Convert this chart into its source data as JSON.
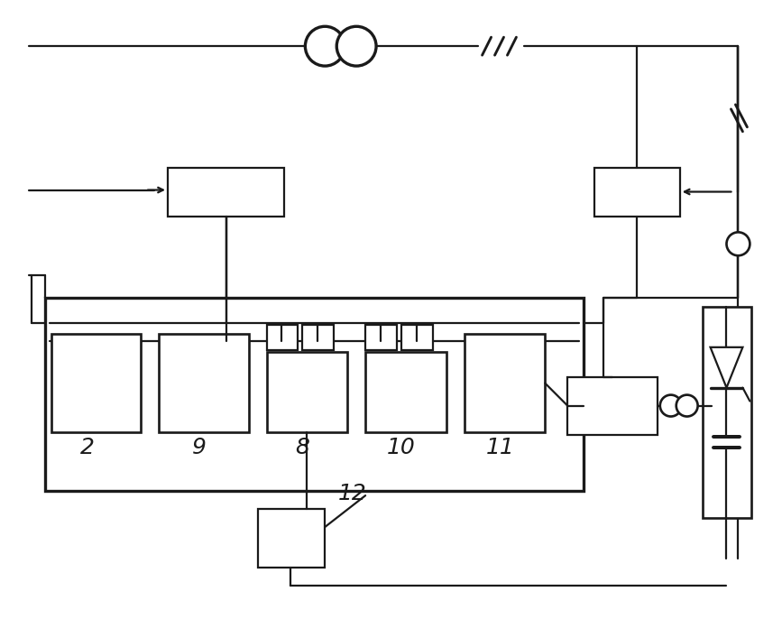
{
  "bg_color": "#ffffff",
  "line_color": "#1a1a1a",
  "line_width": 1.6,
  "fig_width": 8.67,
  "fig_height": 6.86,
  "dpi": 100
}
